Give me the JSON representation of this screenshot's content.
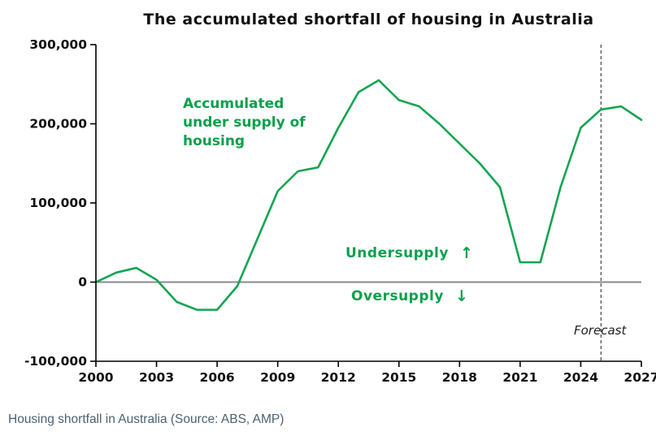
{
  "page": {
    "caption": "Housing shortfall in Australia (Source: ABS, AMP)"
  },
  "chart_data": {
    "type": "line",
    "title": "The accumulated shortfall of housing in Australia",
    "xlabel": "",
    "ylabel": "",
    "xlim": [
      2000,
      2027
    ],
    "ylim": [
      -100000,
      300000
    ],
    "grid": false,
    "legend": "none",
    "x": [
      2000,
      2001,
      2002,
      2003,
      2004,
      2005,
      2006,
      2007,
      2008,
      2009,
      2010,
      2011,
      2012,
      2013,
      2014,
      2015,
      2016,
      2017,
      2018,
      2019,
      2020,
      2021,
      2022,
      2023,
      2024,
      2025,
      2026,
      2027
    ],
    "series": [
      {
        "name": "Accumulated under supply of housing",
        "color": "#12a550",
        "values": [
          0,
          12000,
          18000,
          3000,
          -25000,
          -35000,
          -35000,
          -5000,
          55000,
          115000,
          140000,
          145000,
          195000,
          240000,
          255000,
          230000,
          222000,
          200000,
          175000,
          150000,
          120000,
          25000,
          25000,
          120000,
          195000,
          218000,
          222000,
          205000
        ]
      }
    ],
    "y_ticks": [
      {
        "value": 300000,
        "label": "300,000"
      },
      {
        "value": 200000,
        "label": "200,000"
      },
      {
        "value": 100000,
        "label": "100,000"
      },
      {
        "value": 0,
        "label": "0"
      },
      {
        "value": -100000,
        "label": "-100,000"
      }
    ],
    "x_ticks": [
      2000,
      2003,
      2006,
      2009,
      2012,
      2015,
      2018,
      2021,
      2024,
      2027
    ],
    "forecast_x": 2025,
    "zero_line": 0,
    "colors": {
      "line": "#12a550",
      "text_green": "#0ba04c",
      "zero_line": "#8a8a8a",
      "forecast_line": "#222222"
    },
    "annotations": {
      "series_label_lines": [
        "Accumulated",
        "under supply of",
        "housing"
      ],
      "undersupply": "Undersupply",
      "undersupply_arrow": "↑",
      "oversupply": "Oversupply",
      "oversupply_arrow": "↓",
      "forecast": "Forecast"
    }
  }
}
